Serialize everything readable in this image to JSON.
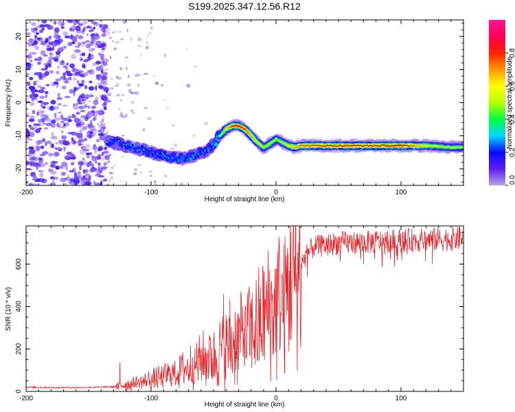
{
  "page_title": "S199.2025.347.12.56.R12",
  "chart_data": [
    {
      "id": "spectrogram",
      "type": "heatmap",
      "title": "S199.2025.347.12.56.R12",
      "xlabel": "Height of straight line (km)",
      "ylabel": "Frequency (Hz)",
      "xlim": [
        -200,
        150
      ],
      "ylim": [
        -25,
        25
      ],
      "xticks": [
        -200,
        -100,
        0,
        100
      ],
      "yticks": [
        20,
        10,
        0,
        -10,
        -20
      ],
      "colorbar": {
        "label": "Normalized spectral amplitude",
        "range": [
          0,
          1
        ],
        "ticks": [
          0.0,
          0.2,
          0.4,
          0.6,
          0.8
        ],
        "tick_labels": [
          "0.0",
          "0.2",
          "0.4",
          "0.6",
          "0.8"
        ],
        "colormap": [
          "#b8a3e6",
          "#5a1ff0",
          "#0a0aff",
          "#00d8ff",
          "#00ff40",
          "#b8ff00",
          "#ffff00",
          "#ff9900",
          "#ff2000",
          "#ff0055",
          "#ff1493"
        ]
      },
      "noise_region_x": [
        -200,
        -135
      ],
      "ridge": {
        "x": [
          -135,
          -125,
          -115,
          -105,
          -95,
          -85,
          -75,
          -65,
          -55,
          -50,
          -45,
          -40,
          -35,
          -30,
          -25,
          -20,
          -15,
          -10,
          -5,
          0,
          5,
          10,
          15,
          20,
          40,
          60,
          80,
          100,
          120,
          140,
          150
        ],
        "y": [
          -11.5,
          -12.5,
          -13.5,
          -14.5,
          -15.5,
          -16.5,
          -17,
          -16,
          -14.5,
          -12.5,
          -10,
          -8,
          -7,
          -7,
          -8,
          -10,
          -12,
          -13.5,
          -12.5,
          -11,
          -12,
          -13,
          -13.5,
          -13,
          -13,
          -13,
          -13,
          -13,
          -13,
          -13.5,
          -13.5
        ],
        "amplitude": [
          0.25,
          0.3,
          0.3,
          0.3,
          0.3,
          0.3,
          0.3,
          0.3,
          0.3,
          0.35,
          0.45,
          0.6,
          0.85,
          0.9,
          0.85,
          0.7,
          0.6,
          0.55,
          0.55,
          0.5,
          0.55,
          0.6,
          0.7,
          0.75,
          0.8,
          0.8,
          0.8,
          0.85,
          0.6,
          0.5,
          0.5
        ]
      }
    },
    {
      "id": "snr",
      "type": "line",
      "xlabel": "Height of straight line (km)",
      "ylabel": "SNR (10 * v/v)",
      "xlim": [
        -200,
        150
      ],
      "ylim": [
        0,
        780
      ],
      "xticks": [
        -200,
        -100,
        0,
        100
      ],
      "yticks": [
        0,
        200,
        400,
        600
      ],
      "line_color": "#e8252b",
      "envelope": {
        "x": [
          -200,
          -180,
          -160,
          -140,
          -127,
          -120,
          -110,
          -100,
          -90,
          -80,
          -70,
          -60,
          -55,
          -50,
          -45,
          -40,
          -35,
          -30,
          -25,
          -20,
          -15,
          -10,
          -5,
          0,
          5,
          10,
          15,
          20,
          25,
          30,
          40,
          50,
          60,
          80,
          100,
          120,
          150
        ],
        "y": [
          20,
          18,
          18,
          20,
          22,
          35,
          40,
          55,
          70,
          90,
          115,
          140,
          160,
          170,
          185,
          210,
          230,
          250,
          265,
          280,
          300,
          330,
          370,
          400,
          430,
          470,
          520,
          600,
          650,
          680,
          690,
          700,
          700,
          705,
          710,
          715,
          720
        ]
      },
      "spikes": [
        {
          "x": -125,
          "y": 135
        },
        {
          "x": -65,
          "y": 120
        },
        {
          "x": -50,
          "y": 235
        },
        {
          "x": -42,
          "y": 460
        },
        {
          "x": -37,
          "y": 435
        },
        {
          "x": -33,
          "y": 40
        },
        {
          "x": -25,
          "y": 370
        },
        {
          "x": 0,
          "y": 440
        },
        {
          "x": 8,
          "y": 555
        },
        {
          "x": 12,
          "y": 750
        },
        {
          "x": 12,
          "y": 250
        },
        {
          "x": 18,
          "y": 700
        },
        {
          "x": 70,
          "y": 600
        },
        {
          "x": 125,
          "y": 600
        },
        {
          "x": 147,
          "y": 780
        }
      ]
    }
  ]
}
